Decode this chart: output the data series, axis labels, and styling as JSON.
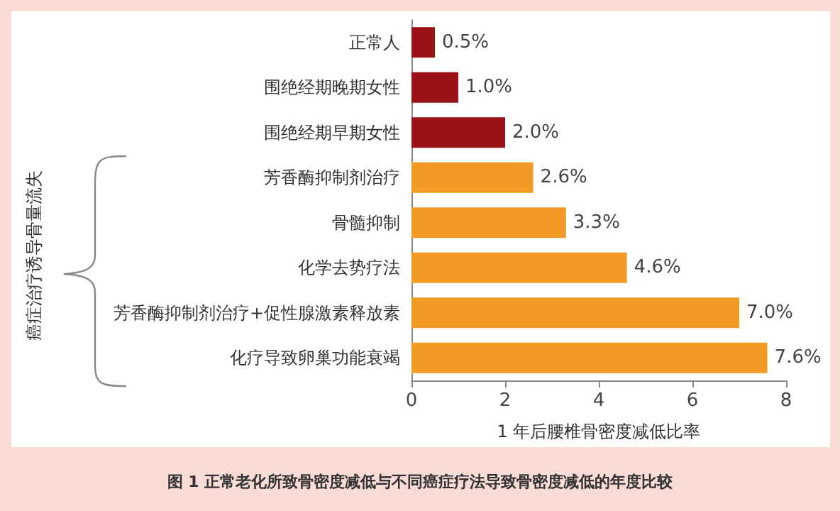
{
  "chart_data": {
    "type": "bar",
    "orientation": "horizontal",
    "title": "图 1 正常老化所致骨密度减低与不同癌症疗法导致骨密度减低的年度比较",
    "xlabel": "1 年后腰椎骨密度减低比率",
    "categories": [
      "正常人",
      "围绝经期晚期女性",
      "围绝经期早期女性",
      "芳香酶抑制剂治疗",
      "骨髓抑制",
      "化学去势疗法",
      "芳香酶抑制剂治疗+促性腺激素释放素",
      "化疗导致卵巢功能衰竭"
    ],
    "values": [
      0.5,
      1.0,
      2.0,
      2.6,
      3.3,
      4.6,
      7.0,
      7.6
    ],
    "value_labels": [
      "0.5%",
      "1.0%",
      "2.0%",
      "2.6%",
      "3.3%",
      "4.6%",
      "7.0%",
      "7.6%"
    ],
    "colors": [
      "#9c1116",
      "#9c1116",
      "#9c1116",
      "#f39a24",
      "#f39a24",
      "#f39a24",
      "#f39a24",
      "#f39a24"
    ],
    "xlim": [
      0,
      8
    ],
    "xticks": [
      0,
      2,
      4,
      6,
      8
    ],
    "annotations": [
      "癌症治疗诱导骨量流失"
    ],
    "grid": false
  }
}
